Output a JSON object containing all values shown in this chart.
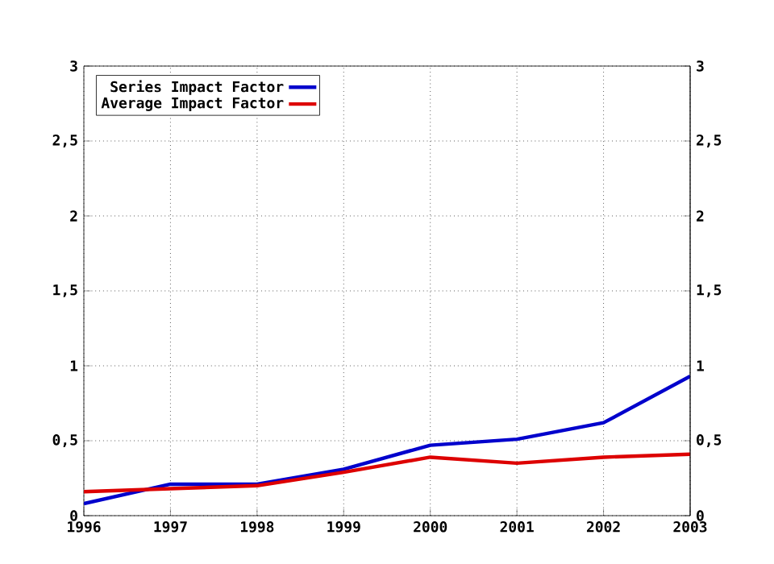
{
  "chart_data": {
    "type": "line",
    "x": [
      1996,
      1997,
      1998,
      1999,
      2000,
      2001,
      2002,
      2003
    ],
    "series": [
      {
        "name": "Series Impact Factor",
        "color": "#0000cc",
        "values": [
          0.08,
          0.21,
          0.21,
          0.31,
          0.47,
          0.51,
          0.62,
          0.93
        ]
      },
      {
        "name": "Average Impact Factor",
        "color": "#dd0000",
        "values": [
          0.16,
          0.18,
          0.2,
          0.29,
          0.39,
          0.35,
          0.39,
          0.41
        ]
      }
    ],
    "xlim": [
      1996,
      2003
    ],
    "xticks": [
      1996,
      1997,
      1998,
      1999,
      2000,
      2001,
      2002,
      2003
    ],
    "ylim": [
      0,
      3
    ],
    "yticks": [
      0,
      {
        "value": 0.5,
        "label": "0,5"
      },
      1,
      {
        "value": 1.5,
        "label": "1,5"
      },
      2,
      {
        "value": 2.5,
        "label": "2,5"
      },
      3
    ],
    "y2lim": [
      0,
      3
    ],
    "y2ticks": [
      0,
      {
        "value": 0.5,
        "label": "0,5"
      },
      1,
      {
        "value": 1.5,
        "label": "1,5"
      },
      2,
      {
        "value": 2.5,
        "label": "2,5"
      },
      3
    ],
    "grid": true,
    "legend": "top left",
    "marker": "none",
    "line_style": "solid"
  }
}
